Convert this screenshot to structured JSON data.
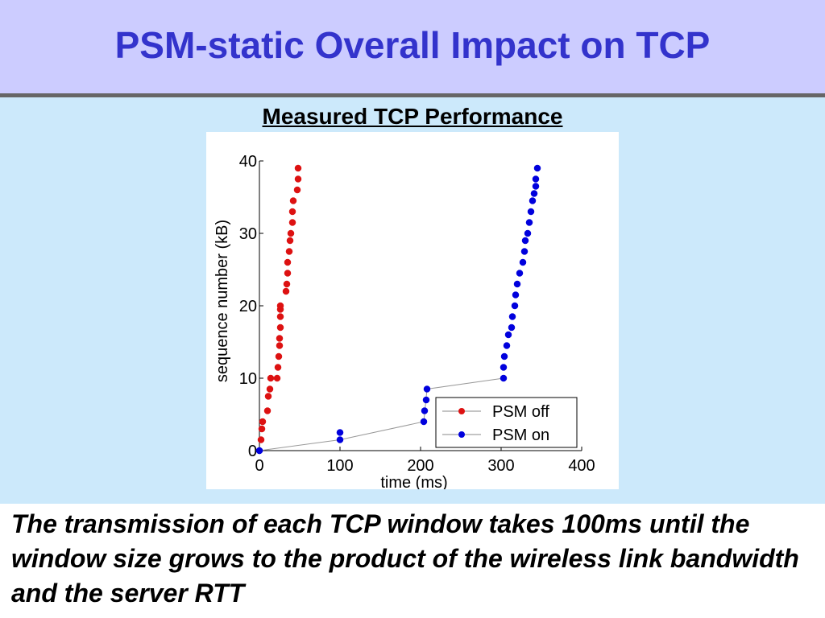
{
  "slide": {
    "title": "PSM-static Overall Impact on TCP",
    "chart_heading": "Measured TCP Performance",
    "caption": "The transmission of each TCP window takes 100ms until the window size grows to the product of the wireless link bandwidth and the server RTT"
  },
  "colors": {
    "title_bar": "#ccccff",
    "title_text": "#3333cc",
    "content_bg": "#cce9fb",
    "psm_off": "#dd1111",
    "psm_on": "#0000dd",
    "connector": "#999999"
  },
  "chart_data": {
    "type": "scatter",
    "title": "",
    "xlabel": "time (ms)",
    "ylabel": "sequence number (kB)",
    "xlim": [
      0,
      400
    ],
    "ylim": [
      0,
      40
    ],
    "xticks": [
      "0",
      "100",
      "200",
      "300",
      "400"
    ],
    "yticks": [
      "0",
      "10",
      "20",
      "30",
      "40"
    ],
    "grid": false,
    "legend_position": "bottom-right",
    "series": [
      {
        "name": "PSM off",
        "color": "#dd1111",
        "x": [
          2,
          3,
          4,
          10,
          11,
          13,
          14,
          22,
          23,
          24,
          25,
          25,
          26,
          26,
          26,
          26,
          33,
          34,
          35,
          35,
          37,
          38,
          39,
          41,
          41,
          42,
          47,
          48,
          48
        ],
        "y": [
          1.5,
          3,
          4,
          5.5,
          7.5,
          8.5,
          10,
          10,
          11.5,
          13,
          14.5,
          15.5,
          17,
          18.5,
          19.5,
          20,
          22,
          23,
          24.5,
          26,
          27.5,
          29,
          30,
          31.5,
          33,
          34.5,
          36,
          37.5,
          39
        ]
      },
      {
        "name": "PSM on",
        "color": "#0000dd",
        "x": [
          0,
          0,
          100,
          100,
          204,
          205,
          207,
          208,
          303,
          303,
          304,
          307,
          309,
          313,
          314,
          317,
          318,
          320,
          323,
          327,
          329,
          330,
          333,
          335,
          337,
          339,
          341,
          343,
          343,
          345
        ],
        "y": [
          0,
          0,
          1.5,
          2.5,
          4,
          5.5,
          7,
          8.5,
          10,
          11.5,
          13,
          14.5,
          16,
          17,
          18.5,
          20,
          21.5,
          23,
          24.5,
          26,
          27.5,
          29,
          30,
          31.5,
          33,
          34.5,
          35.5,
          36.5,
          37.5,
          39
        ]
      }
    ],
    "connector_line": {
      "series": "PSM on",
      "x": [
        0,
        100,
        204,
        208,
        303
      ],
      "y": [
        0,
        1.5,
        4,
        8.5,
        10
      ]
    }
  }
}
